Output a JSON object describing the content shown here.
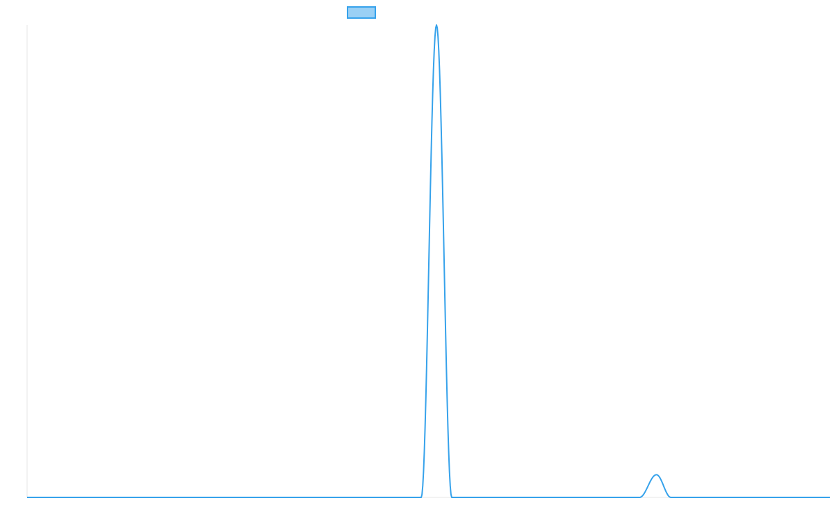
{
  "chart_data": {
    "type": "line",
    "title": "",
    "xlabel": "",
    "ylabel": "",
    "xlim": [
      0,
      1000
    ],
    "ylim": [
      0,
      1000
    ],
    "grid": false,
    "legend": {
      "position": "top-center",
      "entries": [
        {
          "name": "",
          "color": "#36a2eb"
        }
      ]
    },
    "series": [
      {
        "color": "#36a2eb",
        "fill": "#9ad0f5",
        "peaks": [
          {
            "x_start": 0,
            "x_end": 491,
            "y": 0
          },
          {
            "x_start": 491,
            "x_center": 510,
            "x_end": 529,
            "y_peak": 1000
          },
          {
            "x_start": 529,
            "x_end": 763,
            "y": 0
          },
          {
            "x_start": 763,
            "x_center": 784,
            "x_end": 802,
            "y_peak": 48
          },
          {
            "x_start": 802,
            "x_end": 1000,
            "y": 0
          }
        ]
      }
    ]
  }
}
